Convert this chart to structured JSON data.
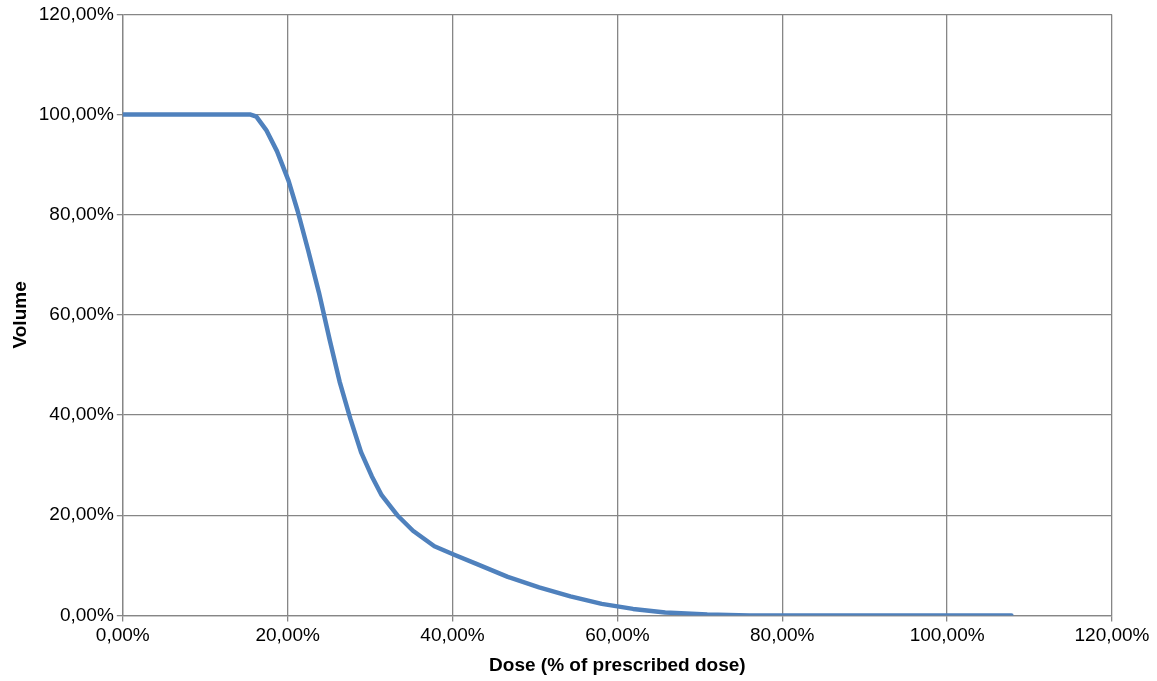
{
  "chart_data": {
    "type": "line",
    "xlabel": "Dose (% of prescribed dose)",
    "ylabel": "Volume",
    "x": [
      0,
      5,
      10,
      15,
      15.5,
      16.2,
      17.4,
      18.7,
      20.1,
      21.2,
      22.5,
      23.8,
      25.1,
      26.3,
      27.6,
      28.9,
      30.2,
      31.4,
      33.3,
      35.2,
      37.8,
      40.2,
      42.9,
      46.7,
      50.5,
      54.3,
      58.1,
      61.9,
      65.8,
      70.9,
      76,
      80,
      90,
      100,
      107.8
    ],
    "series": [
      {
        "color": "#4f81bd",
        "values": [
          100,
          100,
          100,
          100,
          100,
          99.6,
          96.9,
          92.7,
          86.8,
          80.8,
          72.8,
          64.4,
          55,
          46.7,
          39.3,
          32.6,
          27.8,
          24,
          20,
          16.9,
          13.8,
          12.1,
          10.3,
          7.7,
          5.6,
          3.8,
          2.3,
          1.3,
          0.6,
          0.2,
          0,
          0,
          0,
          0,
          0
        ]
      }
    ],
    "xlim": [
      0,
      120
    ],
    "ylim": [
      0,
      120
    ],
    "xticks": [
      {
        "value": 0,
        "label": "0,00%"
      },
      {
        "value": 20,
        "label": "20,00%"
      },
      {
        "value": 40,
        "label": "40,00%"
      },
      {
        "value": 60,
        "label": "60,00%"
      },
      {
        "value": 80,
        "label": "80,00%"
      },
      {
        "value": 100,
        "label": "100,00%"
      },
      {
        "value": 120,
        "label": "120,00%"
      }
    ],
    "yticks": [
      {
        "value": 0,
        "label": "0,00%"
      },
      {
        "value": 20,
        "label": "20,00%"
      },
      {
        "value": 40,
        "label": "40,00%"
      },
      {
        "value": 60,
        "label": "60,00%"
      },
      {
        "value": 80,
        "label": "80,00%"
      },
      {
        "value": 100,
        "label": "100,00%"
      },
      {
        "value": 120,
        "label": "120,00%"
      }
    ],
    "grid": true,
    "legend": false,
    "marker": "none",
    "line_style": "solid"
  }
}
